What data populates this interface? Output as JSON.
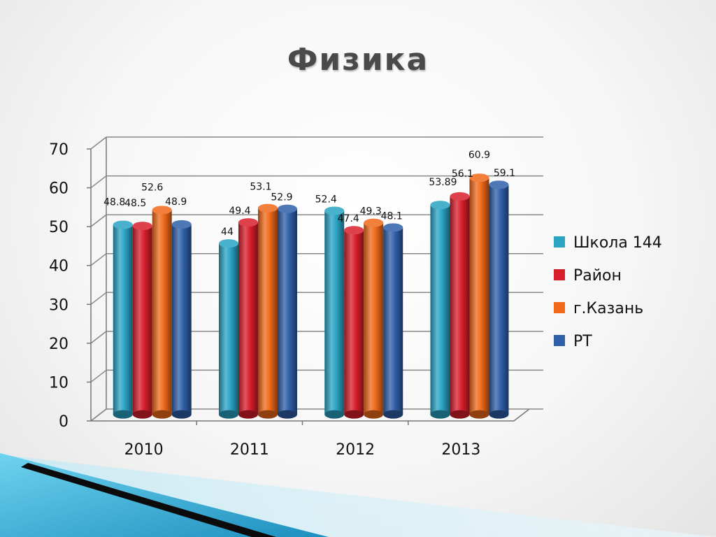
{
  "slide": {
    "title": "Физика"
  },
  "colors": {
    "Школа 144": "#2aa3c4",
    "Район": "#d81e2c",
    "г.Казань": "#f06a1a",
    "РТ": "#2f5fa8"
  },
  "chart_data": {
    "type": "bar",
    "title": "Физика",
    "categories": [
      "2010",
      "2011",
      "2012",
      "2013"
    ],
    "series": [
      {
        "name": "Школа 144",
        "values": [
          48.8,
          44,
          52.4,
          53.89
        ]
      },
      {
        "name": "Район",
        "values": [
          48.5,
          49.4,
          47.4,
          56.1
        ]
      },
      {
        "name": "г.Казань",
        "values": [
          52.6,
          53.1,
          49.3,
          60.9
        ]
      },
      {
        "name": "РТ",
        "values": [
          48.9,
          52.9,
          48.1,
          59.1
        ]
      }
    ],
    "data_labels": [
      [
        "48.8",
        "44",
        "52.4",
        "53.89"
      ],
      [
        "48.5",
        "49.4",
        "47.4",
        "56.1"
      ],
      [
        "52.6",
        "53.1",
        "49.3",
        "60.9"
      ],
      [
        "48.9",
        "52.9",
        "48.1",
        "59.1"
      ]
    ],
    "ylim": [
      0,
      70
    ],
    "yticks": [
      "0",
      "10",
      "20",
      "30",
      "40",
      "50",
      "60",
      "70"
    ],
    "xlabel": "",
    "ylabel": "",
    "grid": true,
    "legend_position": "right",
    "style": "3d-cylinder"
  }
}
